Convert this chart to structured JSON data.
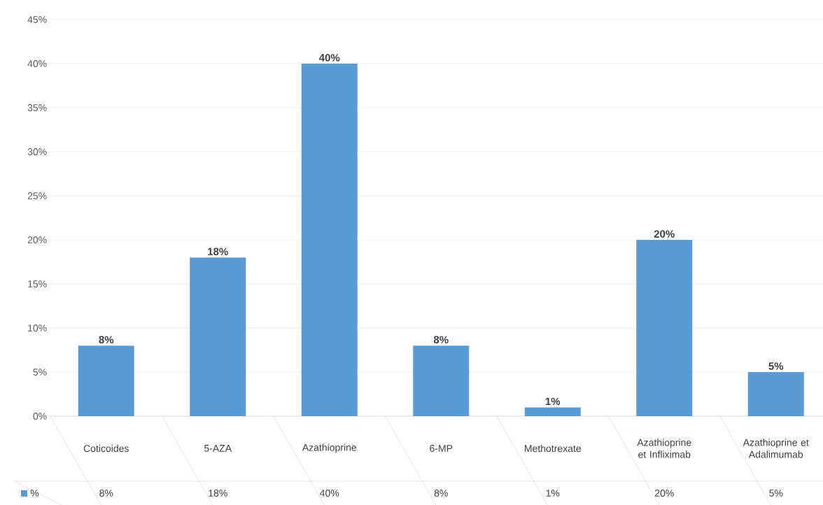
{
  "chart_data": {
    "type": "bar",
    "categories": [
      "Coticoides",
      "5-AZA",
      "Azathioprine",
      "6-MP",
      "Methotrexate",
      "Azathioprine et Infliximab",
      "Azathioprine et Adalimumab"
    ],
    "series": [
      {
        "name": "%",
        "color": "#5b9bd5",
        "values": [
          8,
          18,
          40,
          8,
          1,
          20,
          5
        ],
        "value_labels": [
          "8%",
          "18%",
          "40%",
          "8%",
          "1%",
          "20%",
          "5%"
        ]
      }
    ],
    "ylim": [
      0,
      45
    ],
    "yticks": [
      {
        "value": 0,
        "label": "0%"
      },
      {
        "value": 5,
        "label": "5%"
      },
      {
        "value": 10,
        "label": "10%"
      },
      {
        "value": 15,
        "label": "15%"
      },
      {
        "value": 20,
        "label": "20%"
      },
      {
        "value": 25,
        "label": "25%"
      },
      {
        "value": 30,
        "label": "30%"
      },
      {
        "value": 35,
        "label": "35%"
      },
      {
        "value": 40,
        "label": "40%"
      },
      {
        "value": 45,
        "label": "45%"
      }
    ],
    "grid": "y",
    "legend": "bottom"
  }
}
